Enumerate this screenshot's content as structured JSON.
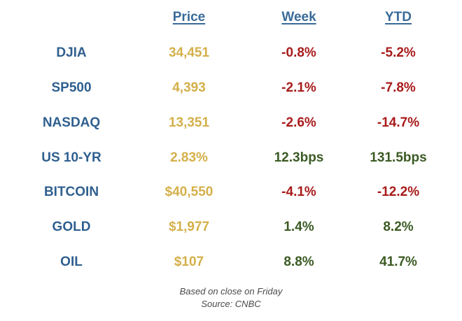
{
  "headers": {
    "price": "Price",
    "week": "Week",
    "ytd": "YTD"
  },
  "rows": [
    {
      "name": "DJIA",
      "price": "34,451",
      "week": "-0.8%",
      "ytd": "-5.2%"
    },
    {
      "name": "SP500",
      "price": "4,393",
      "week": "-2.1%",
      "ytd": "-7.8%"
    },
    {
      "name": "NASDAQ",
      "price": "13,351",
      "week": "-2.6%",
      "ytd": "-14.7%"
    },
    {
      "name": "US 10-YR",
      "price": "2.83%",
      "week": "12.3bps",
      "ytd": "131.5bps"
    },
    {
      "name": "BITCOIN",
      "price": "$40,550",
      "week": "-4.1%",
      "ytd": "-12.2%"
    },
    {
      "name": "GOLD",
      "price": "$1,977",
      "week": "1.4%",
      "ytd": "8.2%"
    },
    {
      "name": "OIL",
      "price": "$107",
      "week": "8.8%",
      "ytd": "41.7%"
    }
  ],
  "footer": {
    "line1": "Based on close on Friday",
    "line2": "Source: CNBC"
  },
  "colors": {
    "header": "#3a6b99",
    "name": "#2f5f8f",
    "price": "#d4b04a",
    "negative": "#a81b1b",
    "positive": "#3b5a23"
  }
}
